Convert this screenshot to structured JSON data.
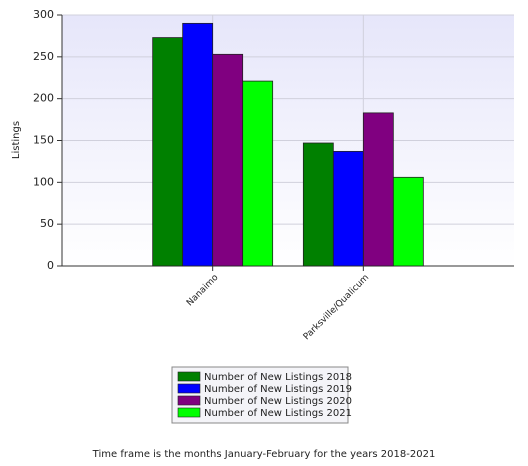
{
  "chart_data": {
    "type": "bar",
    "y_label": "Listings",
    "categories": [
      "Nanaimo",
      "Parksville/Qualicum"
    ],
    "series": [
      {
        "name": "Number of New Listings 2018",
        "color": "#008000",
        "values": [
          273,
          147
        ]
      },
      {
        "name": "Number of New Listings 2019",
        "color": "#0000ff",
        "values": [
          290,
          137
        ]
      },
      {
        "name": "Number of New Listings 2020",
        "color": "#800080",
        "values": [
          253,
          183
        ]
      },
      {
        "name": "Number of New Listings 2021",
        "color": "#00ff00",
        "values": [
          221,
          106
        ]
      }
    ],
    "ylim": [
      0,
      300
    ],
    "yticks": [
      0,
      50,
      100,
      150,
      200,
      250,
      300
    ],
    "grid": true,
    "footnote": "Time frame is the months January-February for the years 2018-2021"
  }
}
